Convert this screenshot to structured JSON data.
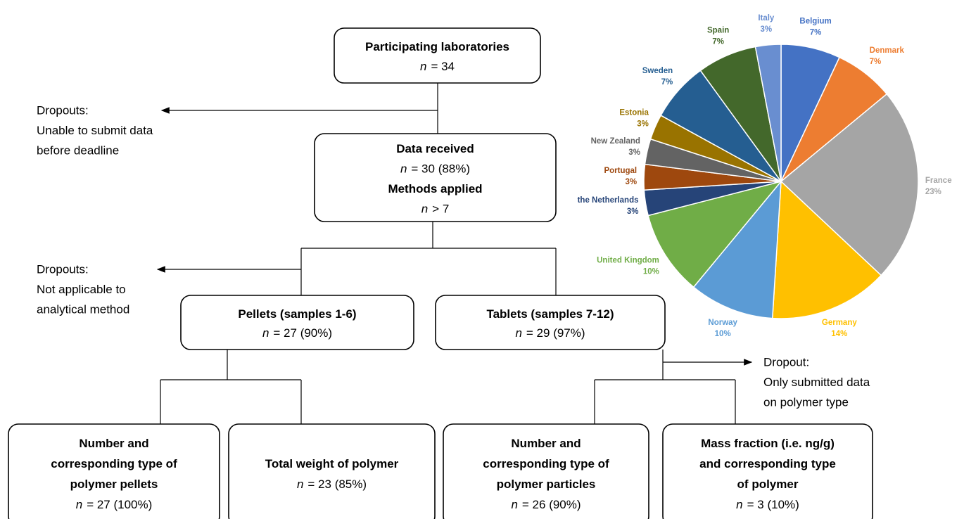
{
  "nodes": [
    {
      "lines": [
        {
          "text": "Participating laboratories"
        },
        {
          "symbol": "n",
          "text": "= 34"
        }
      ]
    },
    {
      "lines": [
        {
          "text": "Data received"
        },
        {
          "symbol": "n",
          "text": "= 30 (88%)"
        },
        {
          "text": "Methods applied"
        },
        {
          "symbol": "n",
          "text": "> 7"
        }
      ]
    },
    {
      "lines": [
        {
          "text": "Pellets (samples 1-6)"
        },
        {
          "symbol": "n",
          "text": "= 27 (90%)"
        }
      ]
    },
    {
      "lines": [
        {
          "text": "Tablets (samples 7-12)"
        },
        {
          "symbol": "n",
          "text": "= 29 (97%)"
        }
      ]
    },
    {
      "lines": [
        {
          "text": "Number and"
        },
        {
          "text": "corresponding type of"
        },
        {
          "text": "polymer pellets"
        },
        {
          "symbol": "n",
          "text": "= 27 (100%)"
        }
      ]
    },
    {
      "lines": [
        {
          "text": "Total weight of polymer"
        },
        {
          "symbol": "n",
          "text": "= 23 (85%)"
        }
      ]
    },
    {
      "lines": [
        {
          "text": "Number and"
        },
        {
          "text": "corresponding type of"
        },
        {
          "text": "polymer particles"
        },
        {
          "symbol": "n",
          "text": "= 26 (90%)"
        }
      ]
    },
    {
      "lines": [
        {
          "text": "Mass fraction (i.e. ng/g)"
        },
        {
          "text": "and corresponding type"
        },
        {
          "text": "of polymer"
        },
        {
          "symbol": "n",
          "text": "= 3 (10%)"
        }
      ]
    }
  ],
  "dropouts": [
    {
      "lines": [
        "Dropouts:",
        "Unable to submit data",
        "before deadline"
      ]
    },
    {
      "lines": [
        "Dropouts:",
        "Not applicable to",
        "analytical method"
      ]
    },
    {
      "lines": [
        "Dropout:",
        "Only submitted data",
        "on polymer type"
      ]
    }
  ],
  "chart_data": {
    "type": "pie",
    "categories": [
      "Belgium",
      "Denmark",
      "France",
      "Germany",
      "Norway",
      "United Kingdom",
      "the Netherlands",
      "Portugal",
      "New Zealand",
      "Estonia",
      "Sweden",
      "Spain",
      "Italy"
    ],
    "values": [
      7,
      7,
      23,
      14,
      10,
      10,
      3,
      3,
      3,
      3,
      7,
      7,
      3
    ],
    "value_labels": [
      "7%",
      "7%",
      "23%",
      "14%",
      "10%",
      "10%",
      "3%",
      "3%",
      "3%",
      "3%",
      "7%",
      "7%",
      "3%"
    ],
    "colors": [
      "#4472c4",
      "#ed7d31",
      "#a5a5a5",
      "#ffc000",
      "#5b9bd5",
      "#70ad47",
      "#264478",
      "#9e480e",
      "#636363",
      "#997300",
      "#255e91",
      "#43682b",
      "#698ed0"
    ]
  }
}
